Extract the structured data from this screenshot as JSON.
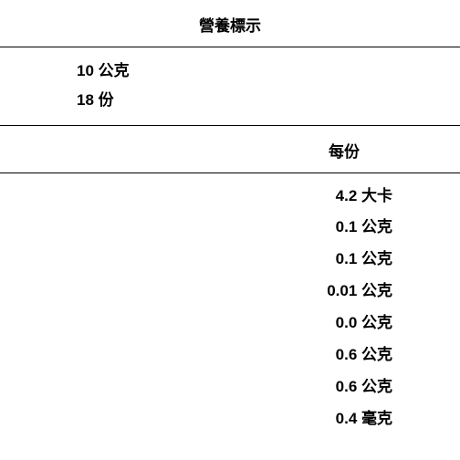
{
  "table": {
    "type": "table",
    "title": "營養標示",
    "background_color": "#ffffff",
    "text_color": "#000000",
    "border_color": "#000000",
    "font_size": 17,
    "font_weight": "bold",
    "serving_size": "10 公克",
    "servings_per_container": "18 份",
    "column_header": "每份",
    "rows": [
      "4.2 大卡",
      "0.1 公克",
      "0.1 公克",
      "0.01 公克",
      "0.0 公克",
      "0.6 公克",
      "0.6 公克",
      "0.4 毫克"
    ]
  }
}
